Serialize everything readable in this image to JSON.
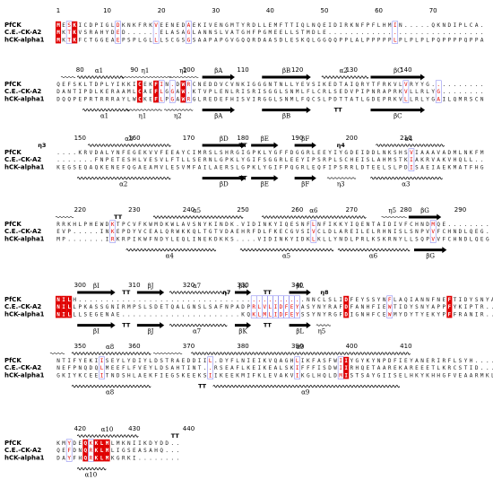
{
  "figure": {
    "seq_names": [
      "PfCK",
      "C.E.-CK-A2",
      "hCK-alpha1"
    ],
    "colors": {
      "identical_bg": "#e00000",
      "similar_text": "#e00000",
      "box": "#7a7aee",
      "text": "#222222"
    },
    "blocks": [
      {
        "ticks": [
          [
            "1",
            1
          ],
          [
            "10",
            10
          ],
          [
            "20",
            20
          ],
          [
            "30",
            30
          ],
          [
            "40",
            40
          ],
          [
            "50",
            50
          ],
          [
            "60",
            60
          ],
          [
            "70",
            70
          ]
        ],
        "seqs": [
          "MESKICDPIGLDKNKFRKVEENEDAEKIVENGMTYRDLLEMFTTIQLNQEIDIRKNFPFLHMIN.....QKNDIPLCA",
          "MKTKVSRAHYDED......ELASAGLANNSLVATGHFPGMEELLSTMDLE...........................",
          "MKTKFCTGGEAEPSPLGLLLSCGSGSAAPAPGVGQQRDAASDLESKQLGGQQPPLALPPPPPLPLPLPLPQPPPPQPPA"
        ],
        "top": [],
        "bottom": []
      },
      {
        "ticks": [
          [
            "80",
            80
          ],
          [
            "90",
            90
          ],
          [
            "100",
            100
          ],
          [
            "110",
            110
          ],
          [
            "120",
            120
          ],
          [
            "130",
            130
          ],
          [
            "140",
            140
          ]
        ],
        "seqs": [
          "QEFSKLTDPLYIKKICEKFIN.DWRCNEDDVCVNKIGGGNTNLLYEVSIKEDTAIQRYTFRKVLVRYYG.........",
          "DANTIPDLKERAAMLCAEFLGGAW.KTVPLENLRISRISGGLSNMLFLCRLSEDVPIPNRAPRKVLLRLYG.......",
          "DQQPEPRTRRRAYLWCKEFLPGAWRGLREDEFHISVIRGGLSNMLFQCSLPDTTATLGDEPRKVLLRLYGAILQMRSCN"
        ],
        "top": [
          {
            "kind": "coil",
            "a": 77,
            "b": 78,
            "label": ""
          },
          {
            "kind": "helix",
            "a": 80,
            "b": 87,
            "label": "α1"
          },
          {
            "kind": "coil",
            "a": 88,
            "b": 96,
            "label": "η1"
          },
          {
            "kind": "coil",
            "a": 97,
            "b": 101,
            "label": "η2"
          },
          {
            "kind": "arrow",
            "a": 103,
            "b": 108,
            "label": "βA"
          },
          {
            "kind": "arrow",
            "a": 114,
            "b": 122,
            "label": "βB"
          },
          {
            "kind": "helix",
            "a": 125,
            "b": 132,
            "label": "α2"
          },
          {
            "kind": "arrow",
            "a": 134,
            "b": 143,
            "label": "βC"
          }
        ],
        "bottom": [
          {
            "kind": "helix",
            "a": 81,
            "b": 88,
            "label": "α1"
          },
          {
            "kind": "coil",
            "a": 89,
            "b": 94,
            "label": "η1"
          },
          {
            "kind": "coil",
            "a": 96,
            "b": 100,
            "label": "η2"
          },
          {
            "kind": "arrow",
            "a": 103,
            "b": 108,
            "label": "βA"
          },
          {
            "kind": "arrow",
            "a": 114,
            "b": 122,
            "label": "βB"
          },
          {
            "kind": "text",
            "a": 126,
            "b": 129,
            "label": "TT"
          },
          {
            "kind": "arrow",
            "a": 134,
            "b": 143,
            "label": "βC"
          }
        ]
      },
      {
        "ticks": [
          [
            "150",
            150
          ],
          [
            "160",
            160
          ],
          [
            "170",
            170
          ],
          [
            "180",
            180
          ],
          [
            "190",
            190
          ],
          [
            "200",
            200
          ],
          [
            "210",
            210
          ]
        ],
        "seqs": [
          "....KRVDALYNFEGEKVVFEEAYCIMRSLSHRGIGPKLYGFFDGGRLEEYIYGDEIDDLNKSHSVIAAAVADMLNKFM",
          ".......FNPETESHLVESVLFTLLSERNLGPKLYGIFSGGRLEEYIPSRPLSCHEISLAHMSTKIAKRVAKVHQLL",
          "KEGSEQAQKENEFQGAEAMVLESVMFAILAERSLGPKLYGIFPQGRLEQFIPSRRLDTEELSLPDISAEIAEKMATFHG"
        ],
        "top": [
          {
            "kind": "text",
            "a": 143,
            "b": 143,
            "label": "η3"
          },
          {
            "kind": "helix",
            "a": 152,
            "b": 166,
            "label": "α3"
          },
          {
            "kind": "arrow",
            "a": 173,
            "b": 180,
            "label": "βD"
          },
          {
            "kind": "text",
            "a": 179,
            "b": 181,
            "label": "TT"
          },
          {
            "kind": "arrow",
            "a": 182,
            "b": 186,
            "label": "βE"
          },
          {
            "kind": "arrow",
            "a": 190,
            "b": 193,
            "label": "βF"
          },
          {
            "kind": "text",
            "a": 197,
            "b": 199,
            "label": "η4"
          },
          {
            "kind": "helix",
            "a": 205,
            "b": 216,
            "label": "α4"
          }
        ],
        "bottom": [
          {
            "kind": "helix",
            "a": 150,
            "b": 166,
            "label": "α2"
          },
          {
            "kind": "arrow",
            "a": 173,
            "b": 180,
            "label": "βD"
          },
          {
            "kind": "text",
            "a": 179,
            "b": 181,
            "label": "TT"
          },
          {
            "kind": "arrow",
            "a": 182,
            "b": 186,
            "label": "βE"
          },
          {
            "kind": "arrow",
            "a": 190,
            "b": 193,
            "label": "βF"
          },
          {
            "kind": "coil",
            "a": 196,
            "b": 200,
            "label": "η3"
          },
          {
            "kind": "helix",
            "a": 204,
            "b": 216,
            "label": "α3"
          }
        ]
      },
      {
        "ticks": [
          [
            "220",
            220
          ],
          [
            "230",
            230
          ],
          [
            "240",
            240
          ],
          [
            "250",
            250
          ],
          [
            "260",
            260
          ],
          [
            "270",
            270
          ],
          [
            "280",
            280
          ],
          [
            "290",
            290
          ]
        ],
        "seqs": [
          "RRKHLPHEWDKTPCVFKWMDKWLAVSNYKINDK.VIDINKYIQESNFLNFIKKYIQENTAIDIVFCHNDMQE",
          "EVP.....INKEPDYVCEALQRWKKQLTGTVDAEHRFDLFKECGVSIVCLDLAREILELRHNISLSNPVVFCHNDLQEG",
          "MP.......IRKRPIKWFNDYLEQLINEKDKKS....VIDINKYIDKLKLLYNDLPRLKSKRNYLLSQPVVFCHNDLQEG"
        ],
        "top": [
          {
            "kind": "coil",
            "a": 216,
            "b": 218,
            "label": ""
          },
          {
            "kind": "text",
            "a": 226,
            "b": 228,
            "label": "TT"
          },
          {
            "kind": "helix",
            "a": 234,
            "b": 249,
            "label": "α5"
          },
          {
            "kind": "helix",
            "a": 254,
            "b": 272,
            "label": "α6"
          },
          {
            "kind": "coil",
            "a": 276,
            "b": 279,
            "label": "η5"
          },
          {
            "kind": "arrow",
            "a": 281,
            "b": 286,
            "label": "βG"
          }
        ],
        "bottom": [
          {
            "kind": "helix",
            "a": 229,
            "b": 244,
            "label": "α4"
          },
          {
            "kind": "helix",
            "a": 250,
            "b": 266,
            "label": "α5"
          },
          {
            "kind": "helix",
            "a": 268,
            "b": 280,
            "label": "α6"
          },
          {
            "kind": "arrow",
            "a": 282,
            "b": 287,
            "label": "βG"
          }
        ]
      },
      {
        "ticks": [
          [
            "300",
            300
          ],
          [
            "310",
            310
          ],
          [
            "320",
            320
          ],
          [
            "330",
            330
          ],
          [
            "340",
            340
          ]
        ],
        "seqs": [
          "NILH..........................................NNCLSLIDFEYSSYNFLAQIANNFNEFTIDYSNYAPPFIINKR",
          "NILLPKASSGNIRMPSLSDETQALGNSLSAFNPADPRLVLIDFEYASYNYRAFDFANHFIEWTIDYSNYAPPFYKIPTR",
          "NILLLSEGENAE......................KQKLMLIDFEYSSYNYRGFDIGNHFCEWMYDYTYEKYPFFRANIR"
        ],
        "top": [
          {
            "kind": "coil",
            "a": 277,
            "b": 277,
            "label": "η6"
          },
          {
            "kind": "arrow",
            "a": 279,
            "b": 282,
            "label": "βH"
          },
          {
            "kind": "arrow",
            "a": 300,
            "b": 306,
            "label": "βI"
          },
          {
            "kind": "text",
            "a": 308,
            "b": 309,
            "label": "TT"
          },
          {
            "kind": "arrow",
            "a": 311,
            "b": 315,
            "label": "βJ"
          },
          {
            "kind": "helix",
            "a": 317,
            "b": 326,
            "label": "α7"
          },
          {
            "kind": "text",
            "a": 327,
            "b": 327,
            "label": "η7"
          },
          {
            "kind": "arrow",
            "a": 329,
            "b": 331,
            "label": "βK"
          },
          {
            "kind": "text",
            "a": 334,
            "b": 335,
            "label": "TT"
          },
          {
            "kind": "arrow",
            "a": 339,
            "b": 342,
            "label": "βL"
          },
          {
            "kind": "text",
            "a": 345,
            "b": 345,
            "label": "η8"
          }
        ],
        "bottom": [
          {
            "kind": "coil",
            "a": 277,
            "b": 277,
            "label": "η4"
          },
          {
            "kind": "arrow",
            "a": 279,
            "b": 282,
            "label": "βH"
          },
          {
            "kind": "arrow",
            "a": 300,
            "b": 306,
            "label": "βI"
          },
          {
            "kind": "text",
            "a": 308,
            "b": 309,
            "label": "TT"
          },
          {
            "kind": "arrow",
            "a": 311,
            "b": 315,
            "label": "βJ"
          },
          {
            "kind": "helix",
            "a": 317,
            "b": 326,
            "label": "α7"
          },
          {
            "kind": "arrow",
            "a": 329,
            "b": 331,
            "label": "βK"
          },
          {
            "kind": "text",
            "a": 334,
            "b": 335,
            "label": "TT"
          },
          {
            "kind": "arrow",
            "a": 339,
            "b": 342,
            "label": "βL"
          },
          {
            "kind": "coil",
            "a": 344,
            "b": 345,
            "label": "η5"
          }
        ]
      },
      {
        "ticks": [
          [
            "350",
            350
          ],
          [
            "360",
            360
          ],
          [
            "370",
            370
          ],
          [
            "380",
            380
          ],
          [
            "390",
            390
          ],
          [
            "400",
            400
          ],
          [
            "410",
            410
          ]
        ],
        "seqs": [
          "NTIFYEKIISEYLYDIYLDSTRAEDDIIL.DYFLNIEIKVQAGHLIKFASFWIIYGYKYNPDFIEYANERIRFLSYH",
          "NEFPNQDQLMEEFLFVEYLDSAHTINT..RSEAFLKEIKEALSKIFFFISDWIIRHQETAAREKAREEETLKRCSTID",
          "GKIYKCEEITNDSHLAEKFIEGSKEEKSIIKEEKMIFKLEVAKVIKGLHQLDMISTSAYGIISELHKYKHHGFVEAARMKLFHMRE"
        ],
        "top": [
          {
            "kind": "coil",
            "a": 345,
            "b": 346,
            "label": ""
          },
          {
            "kind": "helix",
            "a": 349,
            "b": 362,
            "label": "α8"
          },
          {
            "kind": "coil",
            "a": 364,
            "b": 368,
            "label": ""
          },
          {
            "kind": "helix",
            "a": 371,
            "b": 410,
            "label": "α9"
          }
        ],
        "bottom": [
          {
            "kind": "helix",
            "a": 349,
            "b": 362,
            "label": "α8"
          },
          {
            "kind": "text",
            "a": 372,
            "b": 373,
            "label": "TT"
          },
          {
            "kind": "helix",
            "a": 375,
            "b": 408,
            "label": "α9"
          }
        ]
      },
      {
        "ticks": [
          [
            "420",
            420
          ],
          [
            "430",
            430
          ],
          [
            "440",
            440
          ]
        ],
        "seqs": [
          "KMYDEQKKLMLMKNIIKDYDD",
          "QEFDNQRKLMLIGSEASAHQ...",
          "DAYFHQRKLMKGRKI"
        ],
        "top": [
          {
            "kind": "helix",
            "a": 420,
            "b": 430,
            "label": "α10"
          },
          {
            "kind": "text",
            "a": 437,
            "b": 438,
            "label": "TT"
          }
        ],
        "bottom": [
          {
            "kind": "helix",
            "a": 420,
            "b": 424,
            "label": "α10"
          }
        ]
      }
    ]
  }
}
